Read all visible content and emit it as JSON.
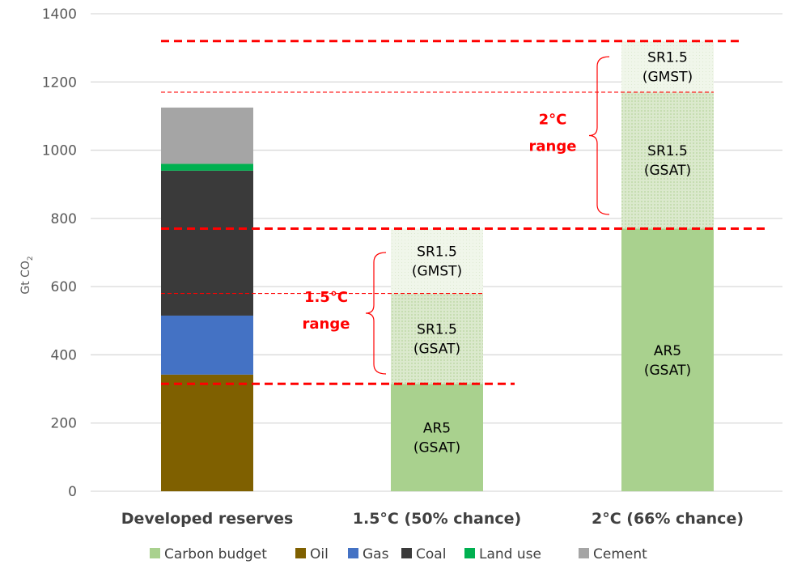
{
  "chart_data": {
    "type": "bar",
    "stacked": true,
    "ylabel": "Gt CO2",
    "ylim": [
      0,
      1400
    ],
    "yticks": [
      0,
      200,
      400,
      600,
      800,
      1000,
      1200,
      1400
    ],
    "grid": true,
    "legend_position": "bottom",
    "categories": [
      "Developed reserves",
      "1.5°C (50% chance)",
      "2°C (66% chance)"
    ],
    "legend": [
      {
        "name": "Carbon budget",
        "color": "#a9d18e"
      },
      {
        "name": "Oil",
        "color": "#7f6000"
      },
      {
        "name": "Gas",
        "color": "#4472c4"
      },
      {
        "name": "Coal",
        "color": "#3a3a3a"
      },
      {
        "name": "Land use",
        "color": "#00b050"
      },
      {
        "name": "Cement",
        "color": "#a5a5a5"
      }
    ],
    "bars": [
      {
        "category": "Developed reserves",
        "segments": [
          {
            "series": "Oil",
            "from": 0,
            "to": 342,
            "color": "#7f6000"
          },
          {
            "series": "Gas",
            "from": 342,
            "to": 515,
            "color": "#4472c4"
          },
          {
            "series": "Coal",
            "from": 515,
            "to": 940,
            "color": "#3a3a3a"
          },
          {
            "series": "Land use",
            "from": 940,
            "to": 960,
            "color": "#00b050"
          },
          {
            "series": "Cement",
            "from": 960,
            "to": 1125,
            "color": "#a5a5a5"
          }
        ]
      },
      {
        "category": "1.5°C (50% chance)",
        "segments": [
          {
            "series": "Carbon budget",
            "from": 0,
            "to": 315,
            "color": "#a9d18e",
            "fill": "solid",
            "label": [
              "AR5",
              "(GSAT)"
            ]
          },
          {
            "series": "Carbon budget",
            "from": 315,
            "to": 580,
            "color": "#a9d18e",
            "fill": "hatched-medium",
            "label": [
              "SR1.5",
              "(GSAT)"
            ]
          },
          {
            "series": "Carbon budget",
            "from": 580,
            "to": 770,
            "color": "#a9d18e",
            "fill": "hatched-light",
            "label": [
              "SR1.5",
              "(GMST)"
            ]
          }
        ]
      },
      {
        "category": "2°C (66% chance)",
        "segments": [
          {
            "series": "Carbon budget",
            "from": 0,
            "to": 770,
            "color": "#a9d18e",
            "fill": "solid",
            "label": [
              "AR5",
              "(GSAT)"
            ]
          },
          {
            "series": "Carbon budget",
            "from": 770,
            "to": 1170,
            "color": "#a9d18e",
            "fill": "hatched-medium",
            "label": [
              "SR1.5",
              "(GSAT)"
            ]
          },
          {
            "series": "Carbon budget",
            "from": 1170,
            "to": 1320,
            "color": "#a9d18e",
            "fill": "hatched-light",
            "label": [
              "SR1.5",
              "(GMST)"
            ]
          }
        ]
      }
    ],
    "reference_lines": [
      {
        "value": 1320,
        "style": "thick-dashed",
        "color": "#ff0000"
      },
      {
        "value": 1170,
        "style": "thin-dashed",
        "color": "#ff0000"
      },
      {
        "value": 770,
        "style": "thick-dashed",
        "color": "#ff0000"
      },
      {
        "value": 580,
        "style": "thin-dashed",
        "color": "#ff0000"
      },
      {
        "value": 315,
        "style": "thick-dashed",
        "color": "#ff0000"
      }
    ],
    "annotations": [
      {
        "text": [
          "1.5°C",
          "range"
        ],
        "from": 315,
        "to": 770,
        "color": "#ff0000"
      },
      {
        "text": [
          "2°C",
          "range"
        ],
        "from": 770,
        "to": 1320,
        "color": "#ff0000"
      }
    ]
  }
}
